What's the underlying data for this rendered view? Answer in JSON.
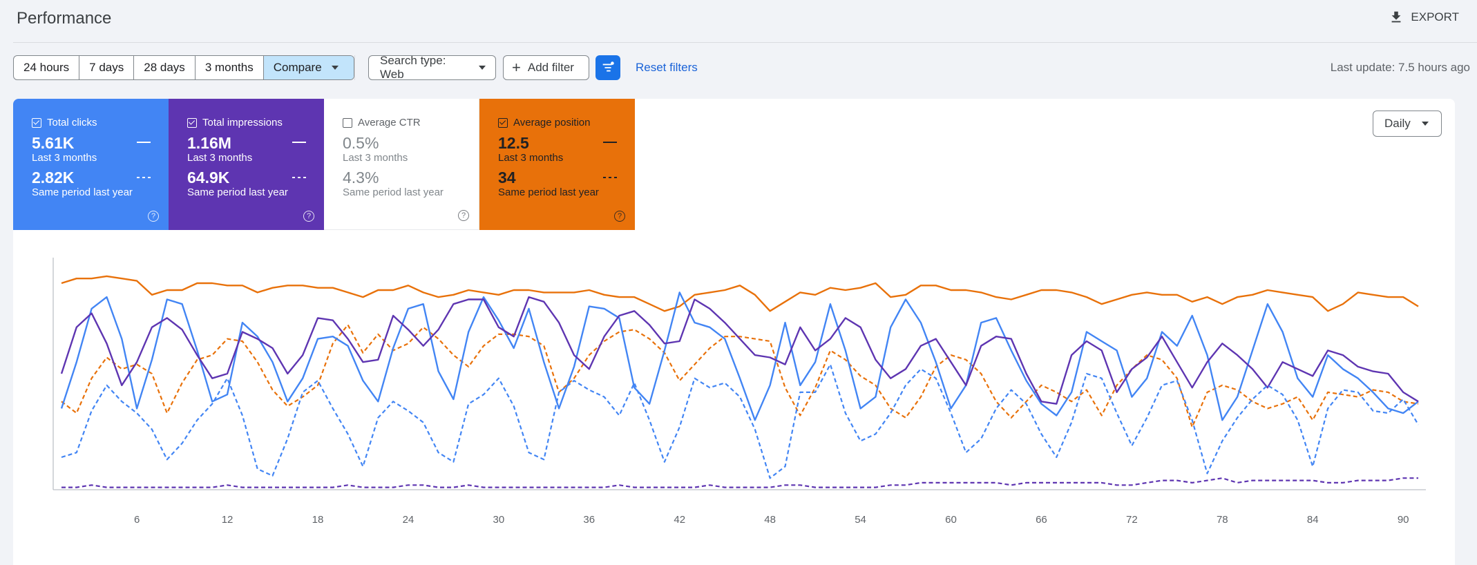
{
  "page": {
    "title": "Performance",
    "export_label": "EXPORT",
    "last_update": "Last update: 7.5 hours ago"
  },
  "date_ranges": [
    {
      "label": "24 hours",
      "active": false
    },
    {
      "label": "7 days",
      "active": false
    },
    {
      "label": "28 days",
      "active": false
    },
    {
      "label": "3 months",
      "active": false
    },
    {
      "label": "Compare",
      "active": true
    }
  ],
  "filters": {
    "search_type": "Search type: Web",
    "add_filter": "Add filter",
    "reset": "Reset filters"
  },
  "granularity": "Daily",
  "metrics": [
    {
      "label": "Total clicks",
      "checked": true,
      "current": "5.61K",
      "current_period": "Last 3 months",
      "previous": "2.82K",
      "previous_period": "Same period last year",
      "color": "#4285f4"
    },
    {
      "label": "Total impressions",
      "checked": true,
      "current": "1.16M",
      "current_period": "Last 3 months",
      "previous": "64.9K",
      "previous_period": "Same period last year",
      "color": "#5e35b1"
    },
    {
      "label": "Average CTR",
      "checked": false,
      "current": "0.5%",
      "current_period": "Last 3 months",
      "previous": "4.3%",
      "previous_period": "Same period last year",
      "color": "#ffffff"
    },
    {
      "label": "Average position",
      "checked": true,
      "current": "12.5",
      "current_period": "Last 3 months",
      "previous": "34",
      "previous_period": "Same period last year",
      "color": "#e8710a"
    }
  ],
  "chart_data": {
    "type": "line",
    "x": [
      1,
      2,
      3,
      4,
      5,
      6,
      7,
      8,
      9,
      10,
      11,
      12,
      13,
      14,
      15,
      16,
      17,
      18,
      19,
      20,
      21,
      22,
      23,
      24,
      25,
      26,
      27,
      28,
      29,
      30,
      31,
      32,
      33,
      34,
      35,
      36,
      37,
      38,
      39,
      40,
      41,
      42,
      43,
      44,
      45,
      46,
      47,
      48,
      49,
      50,
      51,
      52,
      53,
      54,
      55,
      56,
      57,
      58,
      59,
      60,
      61,
      62,
      63,
      64,
      65,
      66,
      67,
      68,
      69,
      70,
      71,
      72,
      73,
      74,
      75,
      76,
      77,
      78,
      79,
      80,
      81,
      82,
      83,
      84,
      85,
      86,
      87,
      88,
      89,
      90,
      91
    ],
    "xticks": [
      6,
      12,
      18,
      24,
      30,
      36,
      42,
      48,
      54,
      60,
      66,
      72,
      78,
      84,
      90
    ],
    "ylim": [
      0,
      100
    ],
    "grid": false,
    "legend": "none",
    "series": [
      {
        "metric": "Average position",
        "period": "current",
        "style": "solid",
        "color": "#e8710a",
        "values": [
          89,
          91,
          91,
          92,
          91,
          90,
          84,
          86,
          86,
          89,
          89,
          88,
          88,
          85,
          87,
          88,
          88,
          87,
          87,
          85,
          83,
          86,
          86,
          88,
          85,
          83,
          84,
          86,
          85,
          84,
          86,
          86,
          85,
          85,
          85,
          86,
          84,
          83,
          83,
          80,
          77,
          79,
          84,
          85,
          86,
          88,
          84,
          77,
          81,
          85,
          84,
          87,
          86,
          87,
          89,
          83,
          84,
          88,
          88,
          86,
          86,
          85,
          83,
          82,
          84,
          86,
          86,
          85,
          83,
          80,
          82,
          84,
          85,
          84,
          84,
          81,
          83,
          80,
          83,
          84,
          86,
          85,
          84,
          83,
          77,
          80,
          85,
          84,
          83,
          83,
          79
        ]
      },
      {
        "metric": "Average position",
        "period": "previous",
        "style": "dashed",
        "color": "#e8710a",
        "values": [
          38,
          33,
          48,
          57,
          52,
          54,
          50,
          33,
          46,
          56,
          58,
          65,
          64,
          55,
          43,
          36,
          40,
          45,
          63,
          71,
          59,
          67,
          60,
          63,
          70,
          65,
          58,
          53,
          62,
          67,
          67,
          66,
          62,
          42,
          48,
          58,
          64,
          68,
          69,
          65,
          59,
          47,
          54,
          61,
          66,
          66,
          65,
          64,
          44,
          32,
          44,
          60,
          56,
          49,
          45,
          35,
          31,
          40,
          53,
          58,
          56,
          50,
          38,
          31,
          38,
          45,
          42,
          38,
          43,
          32,
          45,
          52,
          58,
          56,
          48,
          27,
          42,
          45,
          43,
          38,
          35,
          37,
          40,
          30,
          42,
          41,
          40,
          43,
          42,
          38,
          37
        ]
      },
      {
        "metric": "Total clicks",
        "period": "current",
        "style": "solid",
        "color": "#4285f4",
        "values": [
          35,
          55,
          78,
          83,
          65,
          35,
          56,
          82,
          80,
          60,
          38,
          41,
          72,
          66,
          55,
          38,
          48,
          65,
          66,
          62,
          47,
          38,
          61,
          78,
          80,
          51,
          39,
          68,
          83,
          73,
          61,
          78,
          55,
          35,
          53,
          79,
          78,
          74,
          44,
          37,
          60,
          85,
          72,
          70,
          65,
          48,
          30,
          45,
          72,
          45,
          55,
          80,
          60,
          35,
          40,
          70,
          82,
          72,
          55,
          35,
          45,
          72,
          74,
          60,
          47,
          37,
          32,
          42,
          68,
          64,
          60,
          40,
          48,
          68,
          62,
          75,
          58,
          30,
          40,
          60,
          80,
          68,
          48,
          40,
          58,
          52,
          48,
          42,
          35,
          33,
          38
        ]
      },
      {
        "metric": "Total impressions",
        "period": "current",
        "style": "solid",
        "color": "#5e35b1",
        "values": [
          50,
          70,
          76,
          63,
          45,
          55,
          70,
          74,
          69,
          58,
          48,
          50,
          68,
          65,
          61,
          50,
          58,
          74,
          73,
          65,
          55,
          56,
          75,
          69,
          62,
          69,
          80,
          82,
          82,
          70,
          66,
          83,
          81,
          72,
          58,
          52,
          66,
          75,
          77,
          71,
          63,
          64,
          82,
          78,
          72,
          65,
          58,
          57,
          54,
          70,
          60,
          65,
          74,
          70,
          56,
          48,
          52,
          62,
          65,
          55,
          45,
          62,
          66,
          65,
          50,
          38,
          37,
          58,
          64,
          60,
          42,
          52,
          57,
          66,
          55,
          44,
          55,
          63,
          58,
          52,
          44,
          55,
          52,
          49,
          60,
          58,
          53,
          51,
          50,
          42,
          38
        ]
      },
      {
        "metric": "Total clicks",
        "period": "previous",
        "style": "dashed",
        "color": "#4285f4",
        "values": [
          14,
          16,
          34,
          45,
          38,
          33,
          26,
          13,
          20,
          30,
          37,
          48,
          32,
          9,
          6,
          22,
          42,
          47,
          35,
          24,
          10,
          31,
          38,
          34,
          29,
          16,
          12,
          37,
          41,
          48,
          36,
          16,
          13,
          42,
          47,
          43,
          40,
          32,
          46,
          30,
          12,
          27,
          48,
          44,
          46,
          40,
          26,
          5,
          10,
          42,
          42,
          54,
          33,
          21,
          24,
          33,
          45,
          52,
          48,
          33,
          16,
          22,
          35,
          43,
          37,
          24,
          14,
          29,
          50,
          48,
          33,
          19,
          31,
          45,
          47,
          30,
          7,
          21,
          31,
          39,
          45,
          41,
          30,
          10,
          35,
          43,
          42,
          34,
          33,
          39,
          28
        ]
      },
      {
        "metric": "Total impressions",
        "period": "previous",
        "style": "dashed",
        "color": "#5e35b1",
        "values": [
          1,
          1,
          2,
          1,
          1,
          1,
          1,
          1,
          1,
          1,
          1,
          2,
          1,
          1,
          1,
          1,
          1,
          1,
          1,
          2,
          1,
          1,
          1,
          2,
          2,
          1,
          1,
          2,
          1,
          1,
          1,
          1,
          1,
          1,
          1,
          1,
          1,
          2,
          1,
          1,
          1,
          1,
          1,
          2,
          1,
          1,
          1,
          1,
          2,
          2,
          1,
          1,
          1,
          1,
          1,
          2,
          2,
          3,
          3,
          3,
          3,
          3,
          3,
          2,
          3,
          3,
          3,
          3,
          3,
          3,
          2,
          2,
          3,
          4,
          4,
          3,
          4,
          5,
          3,
          4,
          4,
          4,
          4,
          4,
          3,
          3,
          4,
          4,
          4,
          5,
          5
        ]
      }
    ]
  }
}
